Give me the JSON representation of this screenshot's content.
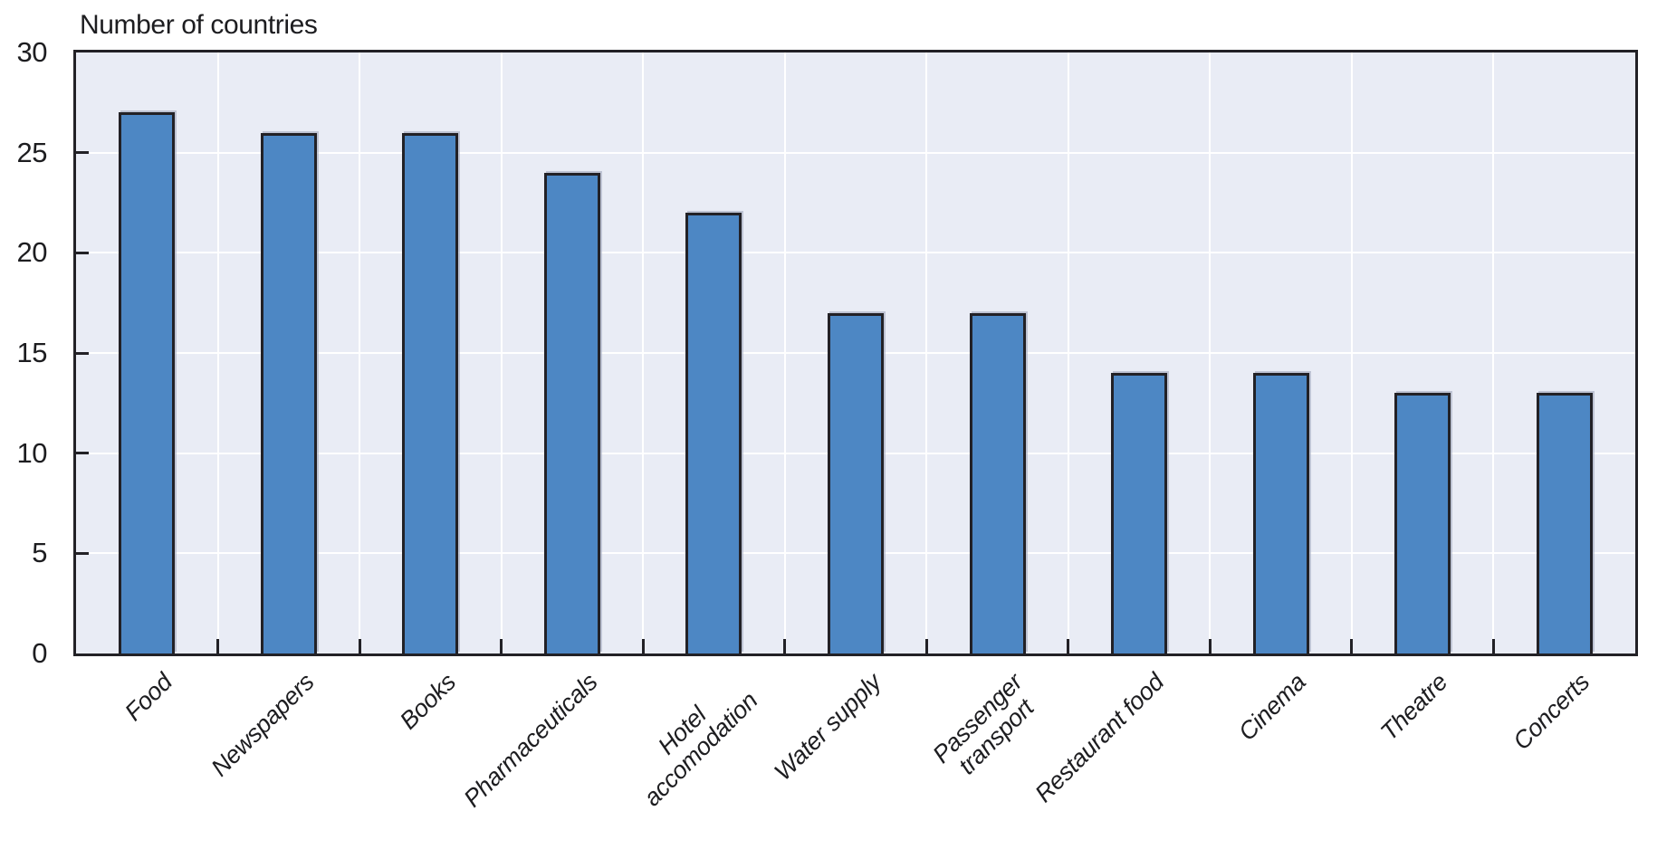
{
  "chart_data": {
    "type": "bar",
    "title": "Number of countries",
    "categories": [
      "Food",
      "Newspapers",
      "Books",
      "Pharmaceuticals",
      "Hotel\naccomodation",
      "Water supply",
      "Passenger\ntransport",
      "Restaurant food",
      "Cinema",
      "Theatre",
      "Concerts"
    ],
    "values": [
      27,
      26,
      26,
      24,
      22,
      17,
      17,
      14,
      14,
      13,
      13
    ],
    "xlabel": "",
    "ylabel": "Number of countries",
    "ylim": [
      0,
      30
    ],
    "yticks": [
      0,
      5,
      10,
      15,
      20,
      25,
      30
    ],
    "grid": "on",
    "legend": "none",
    "x_label_rotation_deg": 45,
    "colors": {
      "bar_fill": "#4d87c4",
      "bar_border": "#222126",
      "plot_background": "#e9ecf5",
      "gridline": "#ffffff",
      "axis": "#222126",
      "text": "#1d1d20"
    }
  }
}
